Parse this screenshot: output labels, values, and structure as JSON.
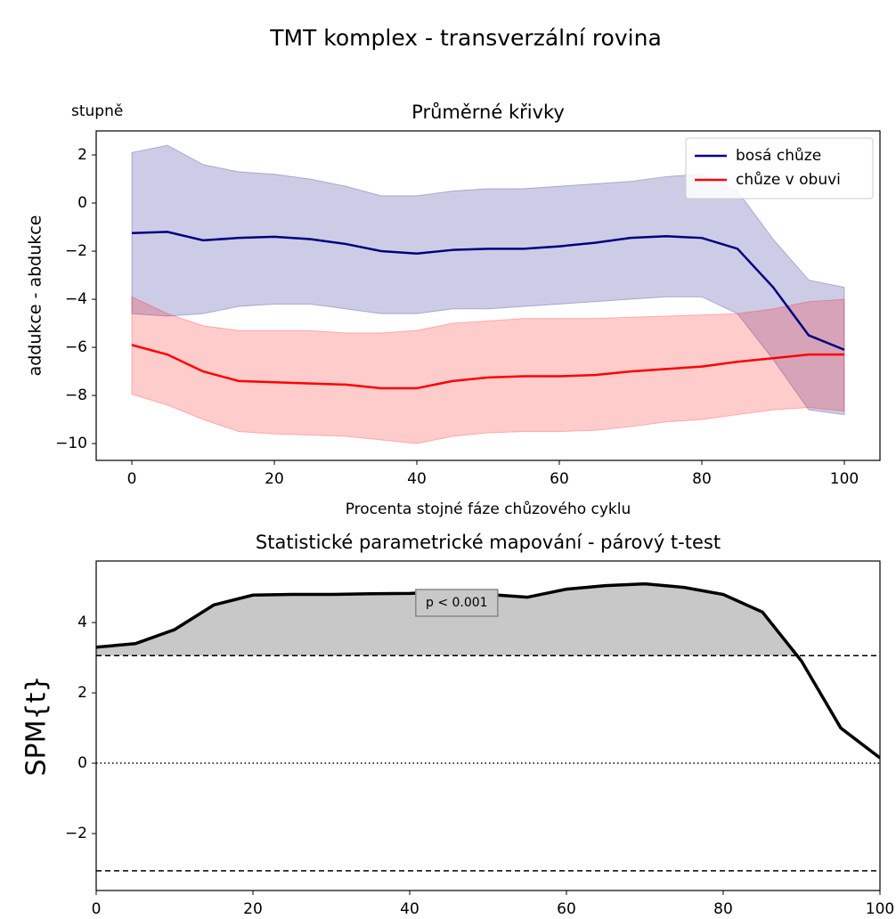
{
  "title": "TMT komplex - transverzální rovina",
  "chart_data": [
    {
      "type": "line",
      "title": "Průměrné křivky",
      "unit_label": "stupně",
      "y_label": "addukce - abdukce",
      "x_label": "Procenta stojné fáze chůzového cyklu",
      "legend": "upper right",
      "x": [
        0,
        5,
        10,
        15,
        20,
        25,
        30,
        35,
        40,
        45,
        50,
        55,
        60,
        65,
        70,
        75,
        80,
        85,
        90,
        95,
        100
      ],
      "xlim": [
        -5,
        105
      ],
      "xticks": [
        0,
        20,
        40,
        60,
        80,
        100
      ],
      "ylim": [
        -10.7,
        3.0
      ],
      "yticks": [
        {
          "value": -10,
          "label": "−10"
        },
        {
          "value": -8,
          "label": "−8"
        },
        {
          "value": -6,
          "label": "−6"
        },
        {
          "value": -4,
          "label": "−4"
        },
        {
          "value": -2,
          "label": "−2"
        },
        0,
        2
      ],
      "series": [
        {
          "name": "bosá chůze",
          "color": "#000080",
          "values": [
            -1.25,
            -1.2,
            -1.55,
            -1.45,
            -1.4,
            -1.5,
            -1.7,
            -2.0,
            -2.1,
            -1.95,
            -1.9,
            -1.9,
            -1.8,
            -1.65,
            -1.45,
            -1.38,
            -1.45,
            -1.9,
            -3.5,
            -5.5,
            -6.1
          ],
          "upper": [
            2.1,
            2.4,
            1.6,
            1.3,
            1.2,
            1.0,
            0.7,
            0.3,
            0.3,
            0.5,
            0.6,
            0.6,
            0.7,
            0.8,
            0.9,
            1.1,
            1.2,
            0.5,
            -1.5,
            -3.2,
            -3.5
          ],
          "lower": [
            -4.6,
            -4.7,
            -4.6,
            -4.3,
            -4.2,
            -4.2,
            -4.4,
            -4.6,
            -4.6,
            -4.4,
            -4.4,
            -4.3,
            -4.2,
            -4.1,
            -4.0,
            -3.9,
            -3.9,
            -4.6,
            -6.5,
            -8.6,
            -8.8
          ]
        },
        {
          "name": "chůze v obuvi",
          "color": "#ff0000",
          "values": [
            -5.9,
            -6.3,
            -7.0,
            -7.4,
            -7.45,
            -7.5,
            -7.55,
            -7.7,
            -7.7,
            -7.4,
            -7.25,
            -7.2,
            -7.2,
            -7.15,
            -7.0,
            -6.9,
            -6.8,
            -6.6,
            -6.45,
            -6.3,
            -6.3
          ],
          "upper": [
            -3.9,
            -4.6,
            -5.1,
            -5.3,
            -5.3,
            -5.3,
            -5.4,
            -5.4,
            -5.3,
            -5.0,
            -4.9,
            -4.8,
            -4.8,
            -4.8,
            -4.75,
            -4.7,
            -4.65,
            -4.6,
            -4.4,
            -4.1,
            -4.0
          ],
          "lower": [
            -7.95,
            -8.4,
            -9.0,
            -9.5,
            -9.6,
            -9.65,
            -9.7,
            -9.85,
            -10.0,
            -9.7,
            -9.55,
            -9.5,
            -9.5,
            -9.45,
            -9.3,
            -9.1,
            -9.0,
            -8.8,
            -8.6,
            -8.5,
            -8.65
          ]
        }
      ]
    },
    {
      "type": "line",
      "title": "Statistické parametrické mapování - párový t-test",
      "y_label": "SPM{t}",
      "annotation": "p < 0.001",
      "x": [
        0,
        5,
        10,
        15,
        20,
        25,
        30,
        35,
        40,
        45,
        50,
        55,
        60,
        65,
        70,
        75,
        80,
        85,
        90,
        95,
        100
      ],
      "xlim": [
        0,
        100
      ],
      "xticks": [
        0,
        20,
        40,
        60,
        80,
        100
      ],
      "ylim": [
        -3.62,
        5.75
      ],
      "yticks": [
        {
          "value": -2,
          "label": "−2"
        },
        0,
        2,
        4
      ],
      "thresholds": [
        3.06,
        -3.06
      ],
      "series": [
        {
          "color": "#000000",
          "values": [
            3.3,
            3.4,
            3.8,
            4.5,
            4.78,
            4.8,
            4.8,
            4.82,
            4.83,
            4.87,
            4.8,
            4.72,
            4.95,
            5.05,
            5.1,
            5.0,
            4.8,
            4.3,
            2.9,
            1.0,
            0.15
          ]
        }
      ]
    }
  ]
}
